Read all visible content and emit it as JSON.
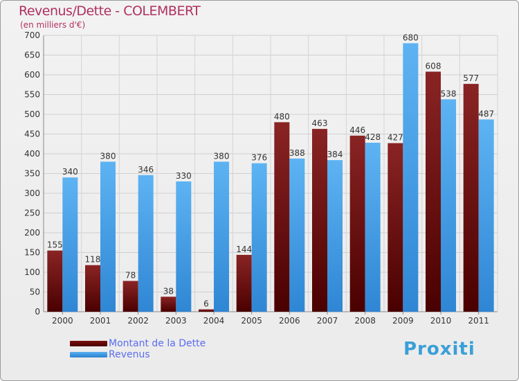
{
  "chart_data": {
    "type": "bar",
    "title": "Revenus/Dette - COLEMBERT",
    "subtitle": "(en milliers d'€)",
    "categories": [
      "2000",
      "2001",
      "2002",
      "2003",
      "2004",
      "2005",
      "2006",
      "2007",
      "2008",
      "2009",
      "2010",
      "2011"
    ],
    "series": [
      {
        "name": "Montant de la Dette",
        "values": [
          155,
          118,
          78,
          38,
          6,
          144,
          480,
          463,
          446,
          427,
          608,
          577
        ],
        "color": "#7a1515"
      },
      {
        "name": "Revenus",
        "values": [
          340,
          380,
          346,
          330,
          380,
          376,
          388,
          384,
          428,
          680,
          538,
          487
        ],
        "color": "#4fa3e8"
      }
    ],
    "yticks": [
      0,
      50,
      100,
      150,
      200,
      250,
      300,
      350,
      400,
      450,
      500,
      550,
      600,
      650,
      700
    ],
    "ylim": [
      0,
      700
    ],
    "grid": true,
    "legend_position": "bottom-left"
  },
  "logo": {
    "text": "Proxiti"
  }
}
